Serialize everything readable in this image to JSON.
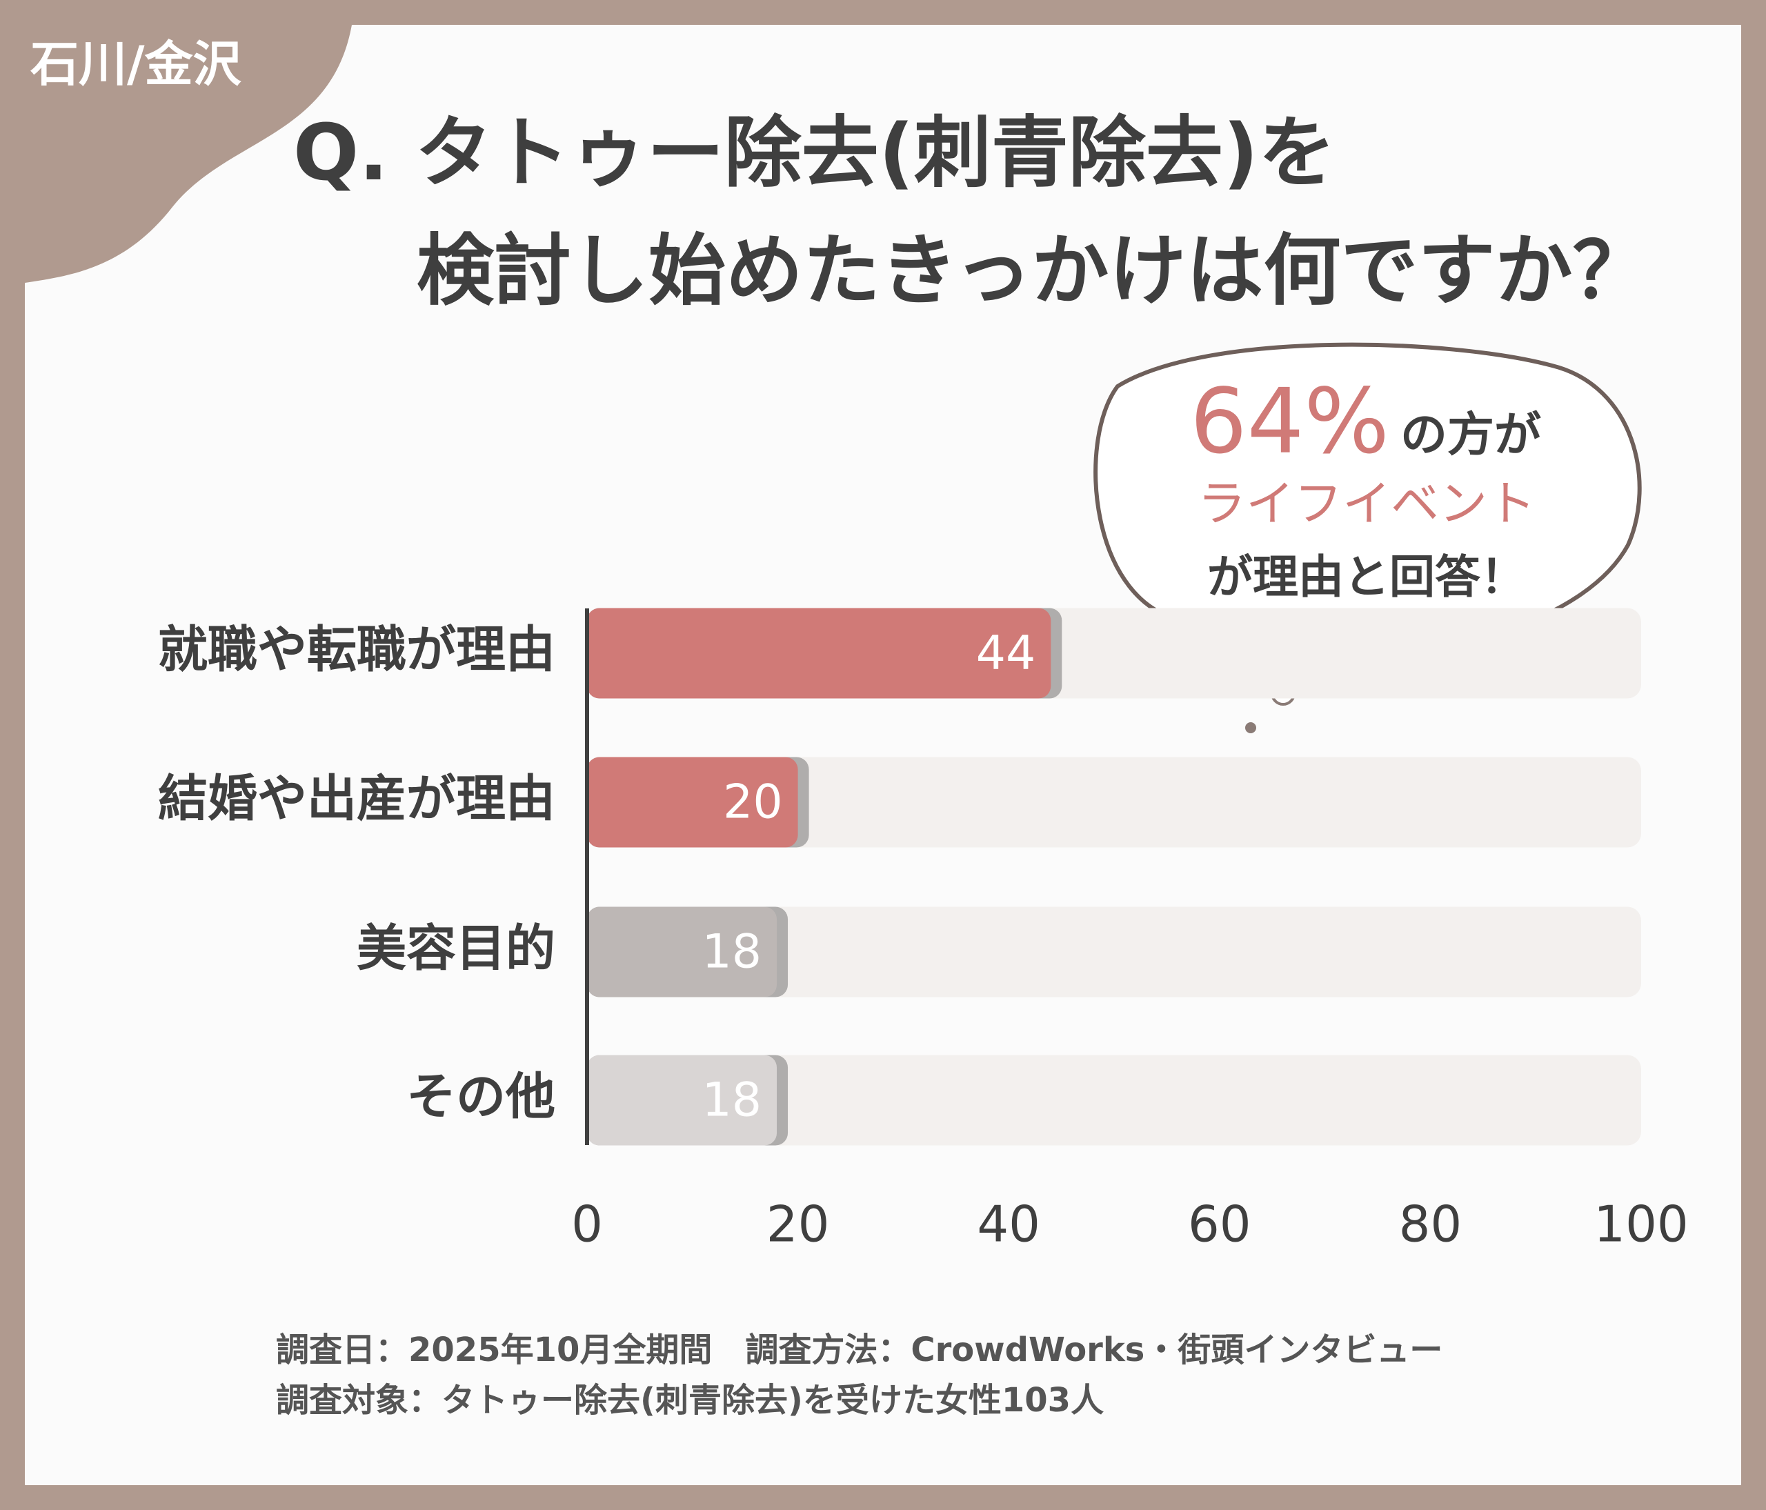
{
  "chart_data": {
    "type": "hbar",
    "tag": "石川/金沢",
    "title": [
      "Q. タトゥー除去(刺青除去)を",
      "検討し始めたきっかけは何ですか？"
    ],
    "categories": [
      "就職や転職が理由",
      "結婚や出産が理由",
      "美容目的",
      "その他"
    ],
    "values": [
      44,
      20,
      18,
      18
    ],
    "colors": [
      "#d07a77",
      "#d07a77",
      "#bdb7b5",
      "#d9d5d4"
    ],
    "track_color": "#f3f0ee",
    "xlim": [
      0,
      100
    ],
    "xticks": [
      0,
      20,
      40,
      60,
      80,
      100
    ],
    "callout": [
      "64%",
      "の方が",
      "ライフイベント",
      "が理由と回答！"
    ],
    "footer": [
      "調査日：2025年10月全期間　調査方法：CrowdWorks・街頭インタビュー",
      "調査対象：タトゥー除去(刺青除去)を受けた女性103人"
    ]
  }
}
